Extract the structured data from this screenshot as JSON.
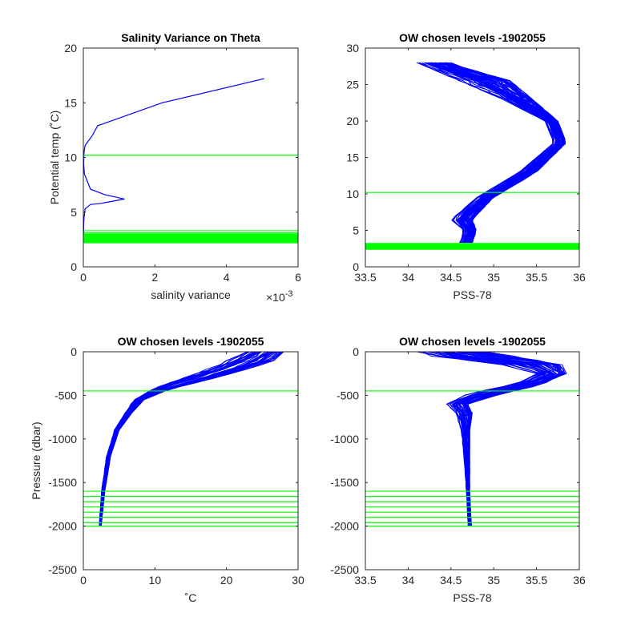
{
  "colors": {
    "profile": "#0000ff",
    "level": "#00ff00",
    "axis": "#262626"
  },
  "chart_data": [
    {
      "type": "line",
      "title": "Salinity Variance on Theta",
      "xlabel": "salinity variance",
      "xlabel_exponent": "×10",
      "xlabel_exponent_power": "-3",
      "ylabel": "Potential temp (˚C)",
      "xlim": [
        0,
        6
      ],
      "ylim": [
        0,
        20
      ],
      "xticks": [
        0,
        2,
        4,
        6
      ],
      "xtick_labels": [
        "0",
        "2",
        "4",
        "6"
      ],
      "yticks": [
        0,
        5,
        10,
        15,
        20
      ],
      "ytick_labels": [
        "0",
        "5",
        "10",
        "15",
        "20"
      ],
      "grid": false,
      "series": [
        {
          "x": [
            5.05,
            2.2,
            0.4,
            0.25,
            0.05,
            0.02,
            0.01,
            0.03,
            0.2,
            0.6,
            1.15,
            0.5,
            0.2,
            0.05,
            0.02,
            0.01,
            0.01,
            0.02
          ],
          "y": [
            17.2,
            15.0,
            12.9,
            12.0,
            11.1,
            10.5,
            9.5,
            8.5,
            7.1,
            6.6,
            6.2,
            5.8,
            5.7,
            5.3,
            4.5,
            3.8,
            3.2,
            2.6
          ]
        }
      ],
      "hlines": [
        10.2,
        3.3,
        3.1,
        3.0,
        2.9,
        2.8,
        2.7,
        2.6,
        2.5,
        2.4,
        2.3,
        2.2
      ]
    },
    {
      "type": "line",
      "title": "OW chosen levels -1902055",
      "xlabel": "PSS-78",
      "ylabel": "",
      "xlim": [
        33.5,
        36
      ],
      "ylim": [
        0,
        30
      ],
      "xticks": [
        33.5,
        34,
        34.5,
        35,
        35.5,
        36
      ],
      "xtick_labels": [
        "33.5",
        "34",
        "34.5",
        "35",
        "35.5",
        "36"
      ],
      "yticks": [
        0,
        5,
        10,
        15,
        20,
        25,
        30
      ],
      "ytick_labels": [
        "0",
        "5",
        "10",
        "15",
        "20",
        "25",
        "30"
      ],
      "grid": false,
      "band": {
        "lo": [
          34.6,
          34.65,
          34.5,
          34.8,
          35.3,
          35.7,
          35.6,
          35.1,
          34.6,
          34.2,
          34.1
        ],
        "hi": [
          34.75,
          34.8,
          34.75,
          35.0,
          35.5,
          35.85,
          35.75,
          35.45,
          35.2,
          34.6,
          34.5
        ],
        "y": [
          3.3,
          5.0,
          6.5,
          9.5,
          13.0,
          17.0,
          20.0,
          23.0,
          25.5,
          27.5,
          28.0
        ]
      },
      "hlines": [
        10.2,
        3.2,
        3.1,
        3.0,
        2.9,
        2.8,
        2.7,
        2.6,
        2.5,
        2.4
      ]
    },
    {
      "type": "line",
      "title": "OW chosen levels -1902055",
      "xlabel": "˚C",
      "ylabel": "Pressure (dbar)",
      "xlim": [
        0,
        30
      ],
      "ylim": [
        -2500,
        0
      ],
      "xticks": [
        0,
        10,
        20,
        30
      ],
      "xtick_labels": [
        "0",
        "10",
        "20",
        "30"
      ],
      "yticks": [
        -2500,
        -2000,
        -1500,
        -1000,
        -500,
        0
      ],
      "ytick_labels": [
        "-2500",
        "-2000",
        "-1500",
        "-1000",
        "-500",
        "0"
      ],
      "grid": false,
      "band": {
        "lo": [
          2.2,
          2.5,
          3.2,
          4.3,
          5.8,
          7.0,
          9.5,
          13.0,
          16.5,
          19.5,
          22.5
        ],
        "hi": [
          2.5,
          3.0,
          3.8,
          5.0,
          6.8,
          8.5,
          12.0,
          17.5,
          22.0,
          26.5,
          28.0
        ],
        "y": [
          -2000,
          -1600,
          -1200,
          -900,
          -700,
          -550,
          -430,
          -320,
          -220,
          -110,
          0
        ]
      },
      "hlines": [
        -450,
        -1600,
        -1660,
        -1720,
        -1780,
        -1840,
        -1900,
        -1960,
        -2000
      ]
    },
    {
      "type": "line",
      "title": "OW chosen levels -1902055",
      "xlabel": "PSS-78",
      "ylabel": "",
      "xlim": [
        33.5,
        36
      ],
      "ylim": [
        -2500,
        0
      ],
      "xticks": [
        33.5,
        34,
        34.5,
        35,
        35.5,
        36
      ],
      "xtick_labels": [
        "33.5",
        "34",
        "34.5",
        "35",
        "35.5",
        "36"
      ],
      "yticks": [
        -2500,
        -2000,
        -1500,
        -1000,
        -500,
        0
      ],
      "ytick_labels": [
        "-2500",
        "-2000",
        "-1500",
        "-1000",
        "-500",
        "0"
      ],
      "grid": false,
      "band": {
        "lo": [
          34.7,
          34.68,
          34.65,
          34.62,
          34.55,
          34.45,
          34.7,
          35.2,
          35.5,
          35.1,
          34.3,
          34.1
        ],
        "hi": [
          34.74,
          34.72,
          34.72,
          34.72,
          34.75,
          34.7,
          35.1,
          35.55,
          35.85,
          35.8,
          35.3,
          34.9
        ],
        "y": [
          -2000,
          -1600,
          -1200,
          -900,
          -700,
          -600,
          -480,
          -380,
          -250,
          -150,
          -60,
          0
        ]
      },
      "hlines": [
        -450,
        -1600,
        -1660,
        -1720,
        -1780,
        -1840,
        -1900,
        -1960,
        -2000
      ]
    }
  ]
}
